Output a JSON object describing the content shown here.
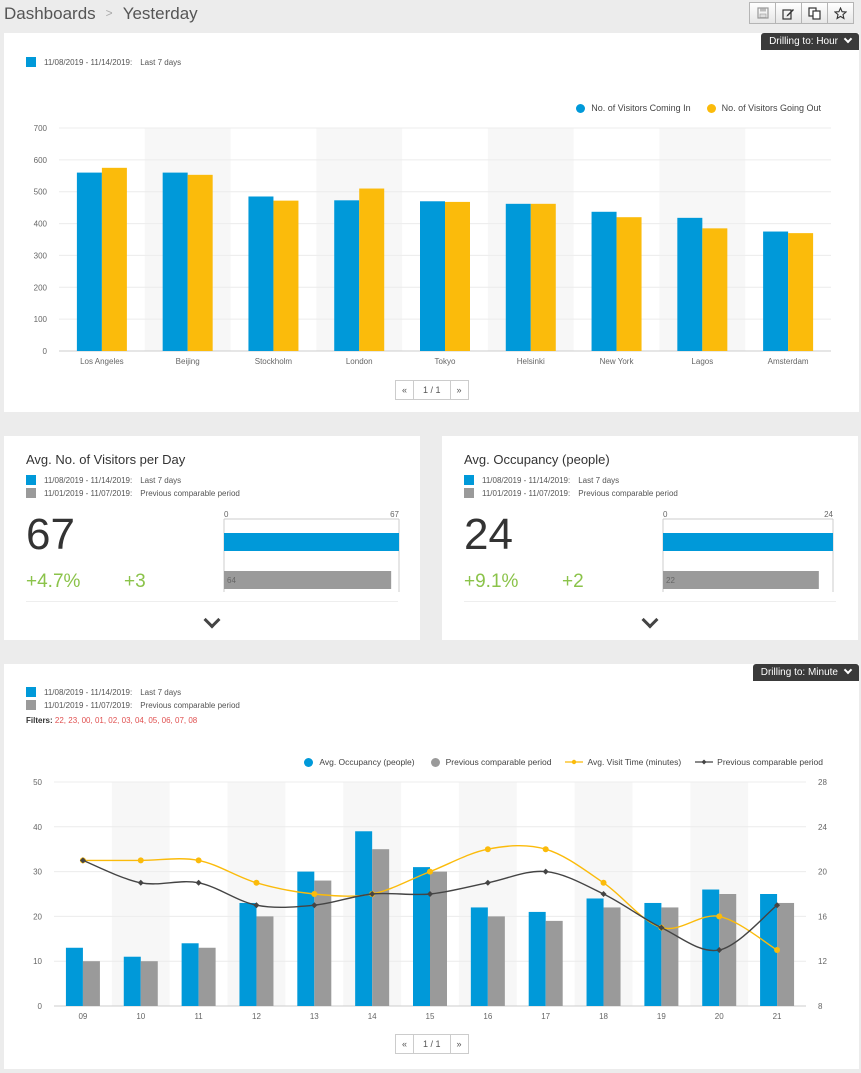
{
  "breadcrumb": {
    "root": "Dashboards",
    "current": "Yesterday"
  },
  "toolbar": {
    "icons": [
      "save-icon",
      "edit-icon",
      "copy-icon",
      "star-icon"
    ]
  },
  "panel1": {
    "drill_label": "Drilling to: Hour",
    "period_range": "11/08/2019 - 11/14/2019:",
    "period_label": "Last 7 days",
    "legend_in": "No. of Visitors Coming In",
    "legend_out": "No. of Visitors Going Out",
    "pager": {
      "prev": "«",
      "page": "1 / 1",
      "next": "»"
    }
  },
  "kpi1": {
    "title": "Avg. No. of Visitors per Day",
    "period_range": "11/08/2019 - 11/14/2019:",
    "period_label": "Last 7 days",
    "prev_range": "11/01/2019 - 11/07/2019:",
    "prev_label": "Previous comparable period",
    "value": "67",
    "pct_change": "+4.7%",
    "abs_change": "+3",
    "bar_min": "0",
    "bar_max": "67",
    "current_value": 67,
    "prev_value": 64,
    "prev_value_label": "64"
  },
  "kpi2": {
    "title": "Avg. Occupancy (people)",
    "period_range": "11/08/2019 - 11/14/2019:",
    "period_label": "Last 7 days",
    "prev_range": "11/01/2019 - 11/07/2019:",
    "prev_label": "Previous comparable period",
    "value": "24",
    "pct_change": "+9.1%",
    "abs_change": "+2",
    "bar_min": "0",
    "bar_max": "24",
    "current_value": 24,
    "prev_value": 22,
    "prev_value_label": "22"
  },
  "panel4": {
    "drill_label": "Drilling to: Minute",
    "period_range": "11/08/2019 - 11/14/2019:",
    "period_label": "Last 7 days",
    "prev_range": "11/01/2019 - 11/07/2019:",
    "prev_label": "Previous comparable period",
    "filters_label": "Filters:",
    "filters_values": "22, 23, 00, 01, 02, 03, 04, 05, 06, 07, 08",
    "pager": {
      "prev": "«",
      "page": "1 / 1",
      "next": "»"
    }
  },
  "colors": {
    "blue": "#0099d9",
    "yellow": "#fbbb0b",
    "gray": "#9a9a9a",
    "dark": "#444444",
    "green": "#8bc34a"
  },
  "chart_data": [
    {
      "type": "bar",
      "categories": [
        "Los Angeles",
        "Beijing",
        "Stockholm",
        "London",
        "Tokyo",
        "Helsinki",
        "New York",
        "Lagos",
        "Amsterdam"
      ],
      "series": [
        {
          "name": "No. of Visitors Coming In",
          "values": [
            560,
            560,
            485,
            473,
            470,
            462,
            437,
            418,
            375
          ]
        },
        {
          "name": "No. of Visitors Going Out",
          "values": [
            575,
            553,
            472,
            510,
            468,
            462,
            420,
            385,
            370
          ]
        }
      ],
      "ylim": [
        0,
        700
      ],
      "yticks": [
        0,
        100,
        200,
        300,
        400,
        500,
        600,
        700
      ],
      "legend": "top-right",
      "grid": true
    },
    {
      "type": "bar-line",
      "categories": [
        "09",
        "10",
        "11",
        "12",
        "13",
        "14",
        "15",
        "16",
        "17",
        "18",
        "19",
        "20",
        "21"
      ],
      "bar_series": [
        {
          "name": "Avg. Occupancy (people)",
          "values": [
            13,
            11,
            14,
            23,
            30,
            39,
            31,
            22,
            21,
            24,
            23,
            26,
            25
          ]
        },
        {
          "name": "Previous comparable period",
          "values": [
            10,
            10,
            13,
            20,
            28,
            35,
            30,
            20,
            19,
            22,
            22,
            25,
            23
          ]
        }
      ],
      "line_series": [
        {
          "name": "Avg. Visit Time (minutes)",
          "values": [
            21,
            21,
            21,
            19,
            18,
            18,
            20,
            22,
            22,
            19,
            15,
            16,
            13
          ]
        },
        {
          "name": "Previous comparable period",
          "values": [
            21,
            19,
            19,
            17,
            17,
            18,
            18,
            19,
            20,
            18,
            15,
            13,
            17
          ]
        }
      ],
      "ylim_left": [
        0,
        50
      ],
      "yticks_left": [
        0,
        10,
        20,
        30,
        40,
        50
      ],
      "ylim_right": [
        8,
        28
      ],
      "yticks_right": [
        8,
        12,
        16,
        20,
        24,
        28
      ],
      "legend": "top-right",
      "grid": true
    }
  ]
}
